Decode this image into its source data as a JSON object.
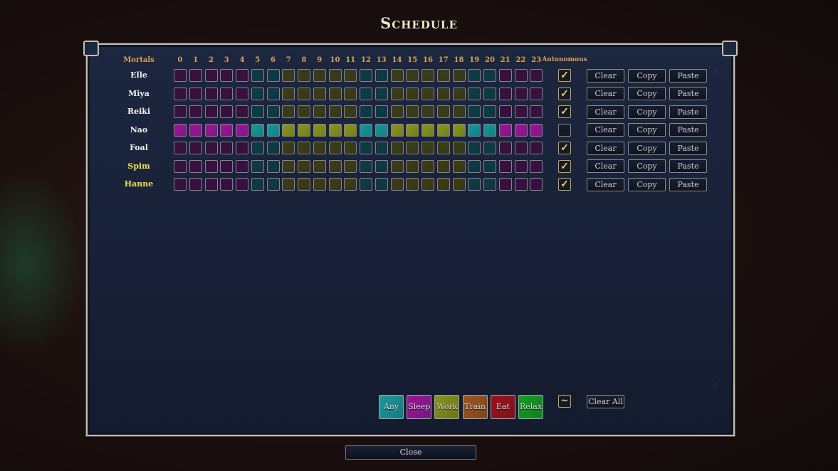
{
  "title": "Schedule",
  "headers": {
    "mortals": "Mortals",
    "autonomous": "Autonomous",
    "hours": [
      "0",
      "1",
      "2",
      "3",
      "4",
      "5",
      "6",
      "7",
      "8",
      "9",
      "10",
      "11",
      "12",
      "13",
      "14",
      "15",
      "16",
      "17",
      "18",
      "19",
      "20",
      "21",
      "22",
      "23"
    ]
  },
  "colors": {
    "sleep": {
      "dim": "#3a0f3e",
      "bright": "#9a1598"
    },
    "any": {
      "dim": "#0d3c42",
      "bright": "#14989a"
    },
    "work": {
      "dim": "#3c3d14",
      "bright": "#8a961a"
    }
  },
  "mortals": [
    {
      "name": "Elle",
      "highlight": false,
      "selected": false,
      "autonomous": true,
      "schedule": [
        "sleep",
        "sleep",
        "sleep",
        "sleep",
        "sleep",
        "any",
        "any",
        "work",
        "work",
        "work",
        "work",
        "work",
        "any",
        "any",
        "work",
        "work",
        "work",
        "work",
        "work",
        "any",
        "any",
        "sleep",
        "sleep",
        "sleep"
      ]
    },
    {
      "name": "Miya",
      "highlight": false,
      "selected": false,
      "autonomous": true,
      "schedule": [
        "sleep",
        "sleep",
        "sleep",
        "sleep",
        "sleep",
        "any",
        "any",
        "work",
        "work",
        "work",
        "work",
        "work",
        "any",
        "any",
        "work",
        "work",
        "work",
        "work",
        "work",
        "any",
        "any",
        "sleep",
        "sleep",
        "sleep"
      ]
    },
    {
      "name": "Reiki",
      "highlight": false,
      "selected": false,
      "autonomous": true,
      "schedule": [
        "sleep",
        "sleep",
        "sleep",
        "sleep",
        "sleep",
        "any",
        "any",
        "work",
        "work",
        "work",
        "work",
        "work",
        "any",
        "any",
        "work",
        "work",
        "work",
        "work",
        "work",
        "any",
        "any",
        "sleep",
        "sleep",
        "sleep"
      ]
    },
    {
      "name": "Nao",
      "highlight": false,
      "selected": true,
      "autonomous": false,
      "schedule": [
        "sleep",
        "sleep",
        "sleep",
        "sleep",
        "sleep",
        "any",
        "any",
        "work",
        "work",
        "work",
        "work",
        "work",
        "any",
        "any",
        "work",
        "work",
        "work",
        "work",
        "work",
        "any",
        "any",
        "sleep",
        "sleep",
        "sleep"
      ]
    },
    {
      "name": "Foal",
      "highlight": false,
      "selected": false,
      "autonomous": true,
      "schedule": [
        "sleep",
        "sleep",
        "sleep",
        "sleep",
        "sleep",
        "any",
        "any",
        "work",
        "work",
        "work",
        "work",
        "work",
        "any",
        "any",
        "work",
        "work",
        "work",
        "work",
        "work",
        "any",
        "any",
        "sleep",
        "sleep",
        "sleep"
      ]
    },
    {
      "name": "Spim",
      "highlight": true,
      "selected": false,
      "autonomous": true,
      "schedule": [
        "sleep",
        "sleep",
        "sleep",
        "sleep",
        "sleep",
        "any",
        "any",
        "work",
        "work",
        "work",
        "work",
        "work",
        "any",
        "any",
        "work",
        "work",
        "work",
        "work",
        "work",
        "any",
        "any",
        "sleep",
        "sleep",
        "sleep"
      ]
    },
    {
      "name": "Hanne",
      "highlight": true,
      "selected": false,
      "autonomous": true,
      "schedule": [
        "sleep",
        "sleep",
        "sleep",
        "sleep",
        "sleep",
        "any",
        "any",
        "work",
        "work",
        "work",
        "work",
        "work",
        "any",
        "any",
        "work",
        "work",
        "work",
        "work",
        "work",
        "any",
        "any",
        "sleep",
        "sleep",
        "sleep"
      ]
    }
  ],
  "row_buttons": {
    "clear": "Clear",
    "copy": "Copy",
    "paste": "Paste"
  },
  "legend": [
    {
      "label": "Any",
      "color": "#1a9a9e"
    },
    {
      "label": "Sleep",
      "color": "#9a169a"
    },
    {
      "label": "Work",
      "color": "#8a9418"
    },
    {
      "label": "Train",
      "color": "#a0561a"
    },
    {
      "label": "Eat",
      "color": "#a0101a"
    },
    {
      "label": "Relax",
      "color": "#10a020"
    }
  ],
  "toggle_all_glyph": "~",
  "clear_all": "Clear All",
  "close": "Close",
  "check_glyph": "✓"
}
